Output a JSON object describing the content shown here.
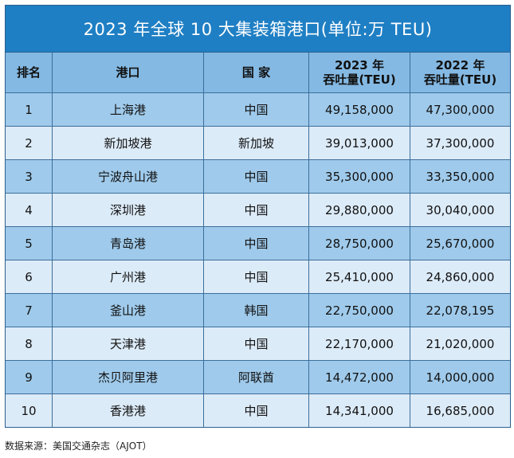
{
  "chart_data": {
    "type": "table",
    "title": "2023 年全球 10 大集装箱港口(单位:万 TEU)",
    "columns": [
      "排名",
      "港口",
      "国 家",
      "2023 年\n吞吐量(TEU)",
      "2022 年\n吞吐量(TEU)"
    ],
    "header_lines": [
      [
        "排名"
      ],
      [
        "港口"
      ],
      [
        "国 家"
      ],
      [
        "2023 年",
        "吞吐量(TEU)"
      ],
      [
        "2022 年",
        "吞吐量(TEU)"
      ]
    ],
    "rows": [
      [
        "1",
        "上海港",
        "中国",
        "49,158,000",
        "47,300,000"
      ],
      [
        "2",
        "新加坡港",
        "新加坡",
        "39,013,000",
        "37,300,000"
      ],
      [
        "3",
        "宁波舟山港",
        "中国",
        "35,300,000",
        "33,350,000"
      ],
      [
        "4",
        "深圳港",
        "中国",
        "29,880,000",
        "30,040,000"
      ],
      [
        "5",
        "青岛港",
        "中国",
        "28,750,000",
        "25,670,000"
      ],
      [
        "6",
        "广州港",
        "中国",
        "25,410,000",
        "24,860,000"
      ],
      [
        "7",
        "釜山港",
        "韩国",
        "22,750,000",
        "22,078,195"
      ],
      [
        "8",
        "天津港",
        "中国",
        "22,170,000",
        "21,020,000"
      ],
      [
        "9",
        "杰贝阿里港",
        "阿联酋",
        "14,472,000",
        "14,000,000"
      ],
      [
        "10",
        "香港港",
        "中国",
        "14,341,000",
        "16,685,000"
      ]
    ],
    "source": "数据来源：美国交通杂志（AJOT）"
  },
  "colors": {
    "title_bg": "#1f7fc4",
    "header_bg": "#84b9e3",
    "row_dark": "#9fcaeb",
    "row_light": "#dcebf8",
    "border": "#3b6e9c"
  }
}
